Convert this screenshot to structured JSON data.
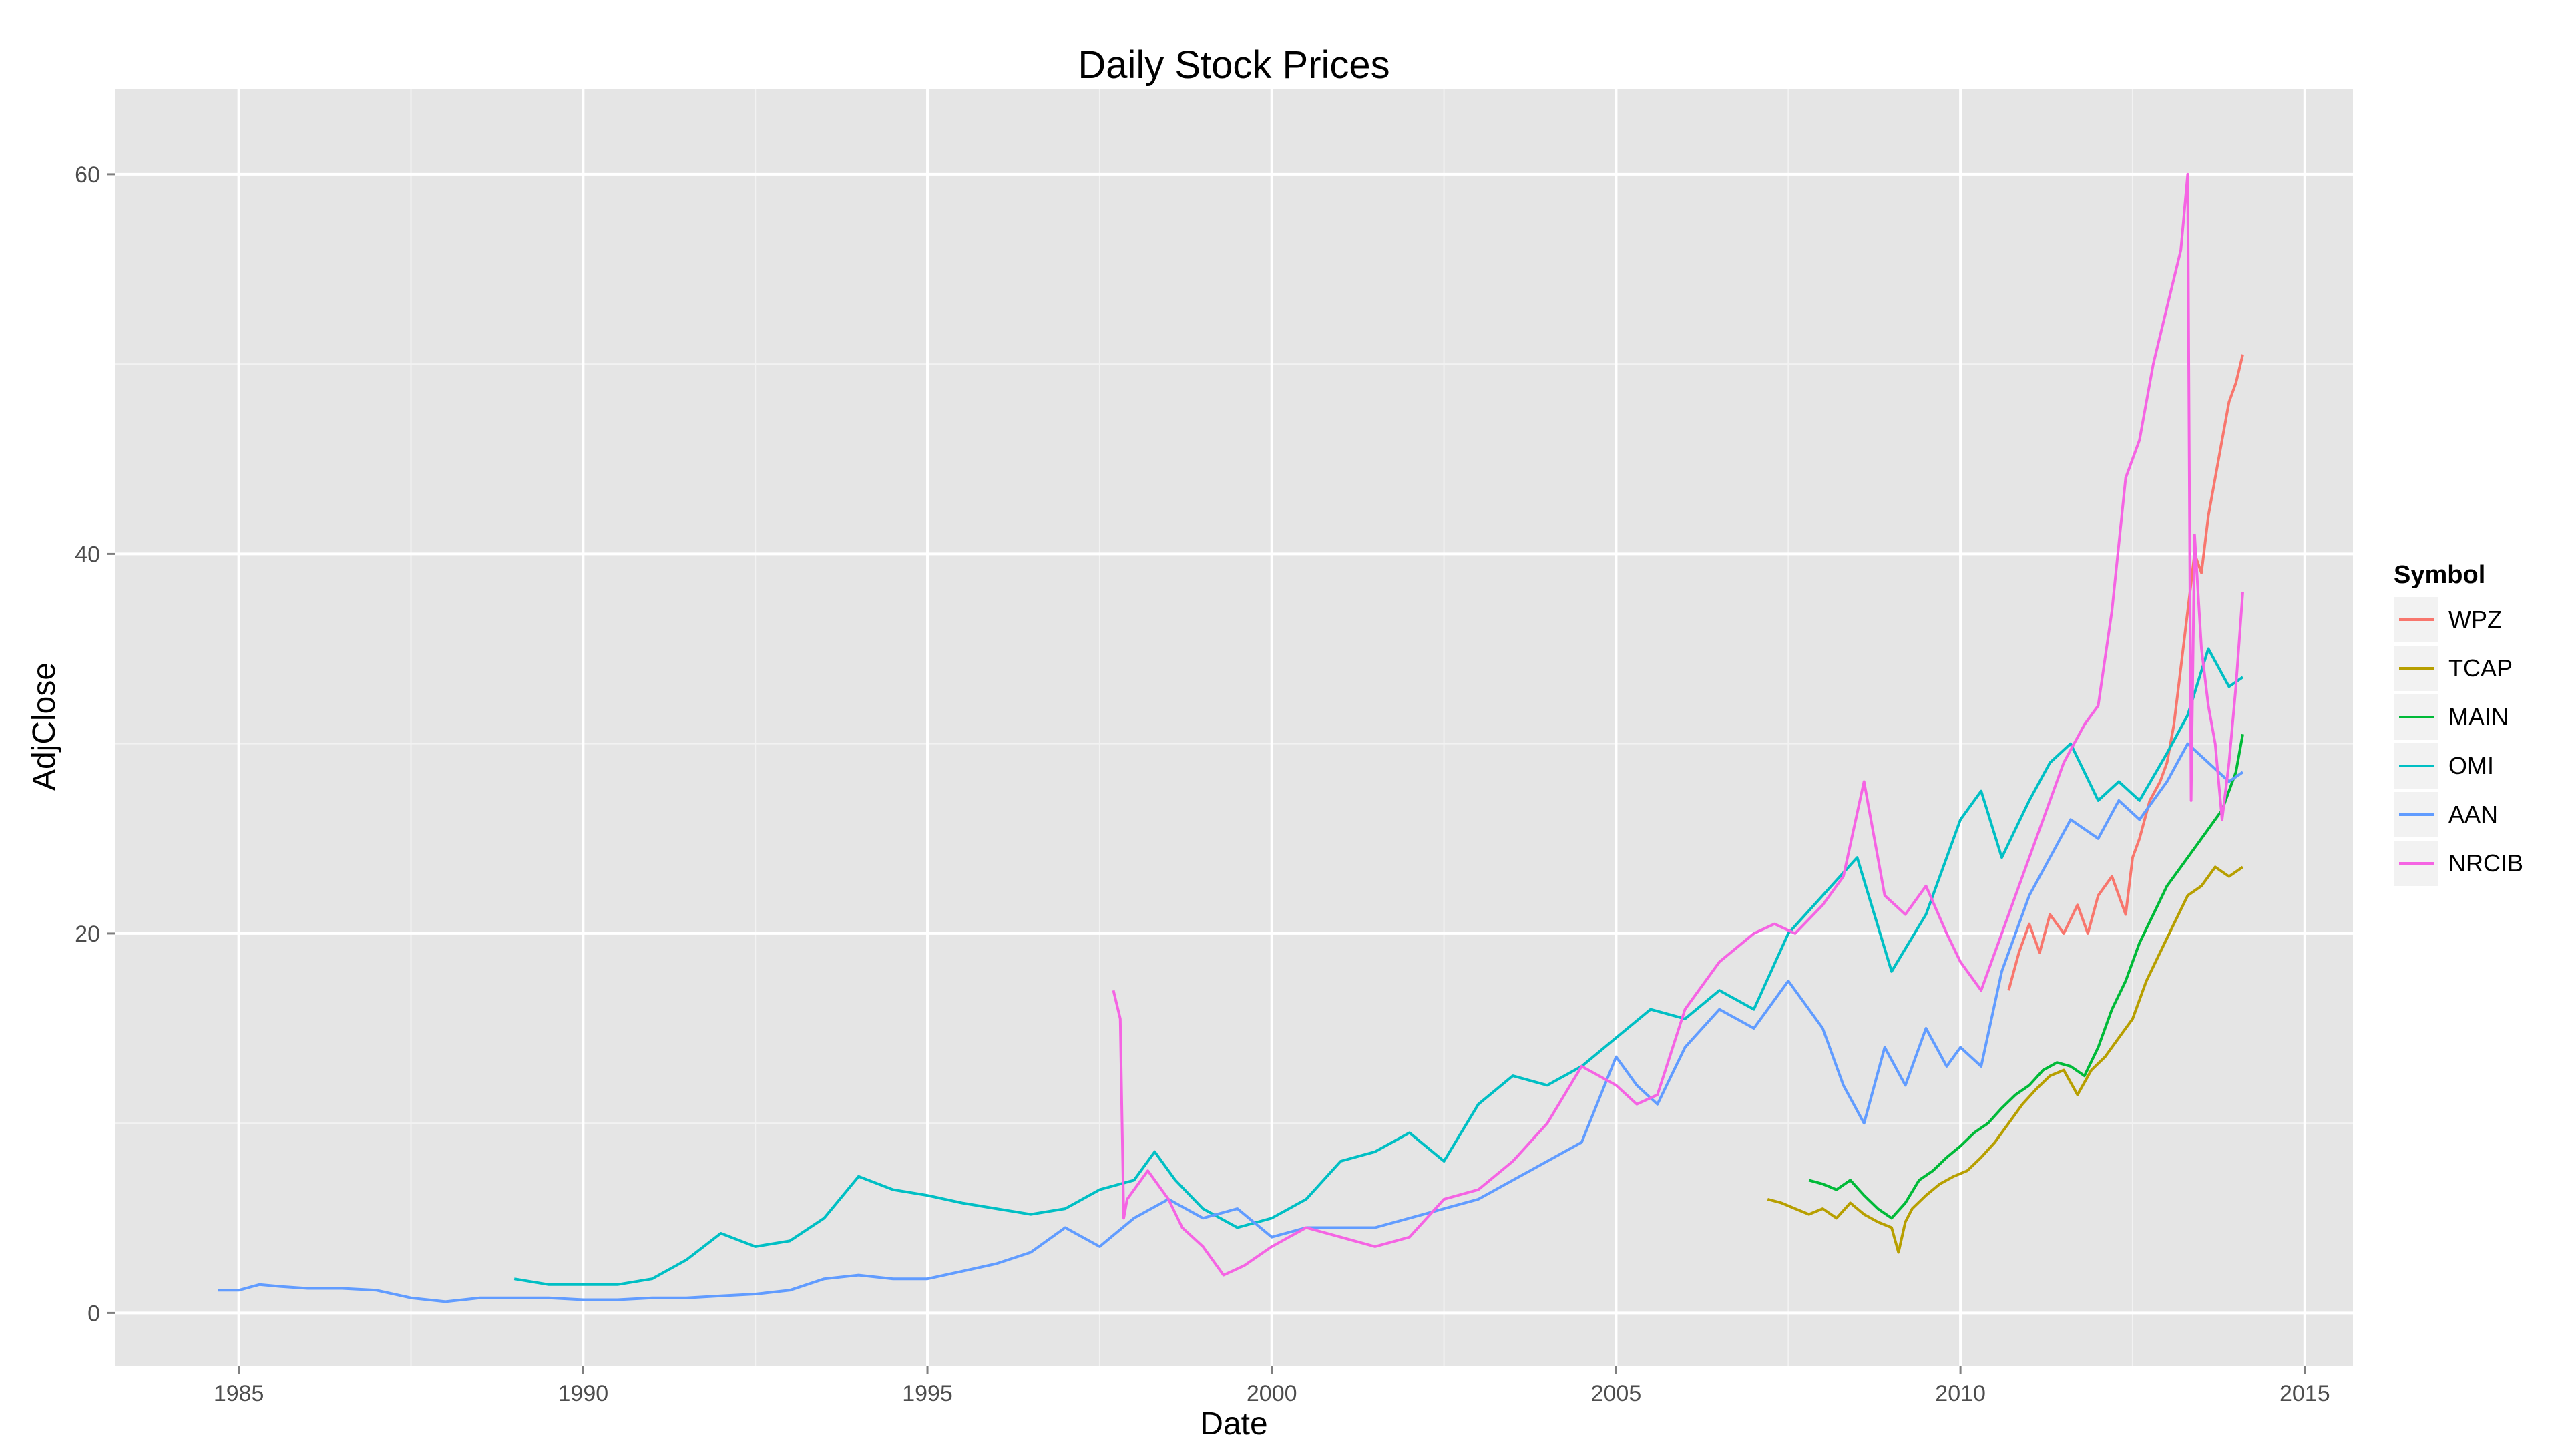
{
  "chart_data": {
    "type": "line",
    "title": "Daily Stock Prices",
    "xlabel": "Date",
    "ylabel": "AdjClose",
    "xlim": [
      1983.2,
      2015.7
    ],
    "ylim": [
      -2.8,
      64.5
    ],
    "x_ticks": [
      1985,
      1990,
      1995,
      2000,
      2005,
      2010,
      2015
    ],
    "x_tick_labels": [
      "1985",
      "1990",
      "1995",
      "2000",
      "2005",
      "2010",
      "2015"
    ],
    "y_ticks": [
      0,
      20,
      40,
      60
    ],
    "y_tick_labels": [
      "0",
      "20",
      "40",
      "60"
    ],
    "grid": true,
    "legend": {
      "title": "Symbol",
      "position": "right"
    },
    "series": [
      {
        "name": "WPZ",
        "color": "#F8766D",
        "x": [
          2010.7,
          2010.85,
          2011.0,
          2011.15,
          2011.3,
          2011.5,
          2011.7,
          2011.85,
          2012.0,
          2012.2,
          2012.4,
          2012.5,
          2012.6,
          2012.75,
          2012.9,
          2013.0,
          2013.1,
          2013.2,
          2013.3,
          2013.4,
          2013.5,
          2013.6,
          2013.7,
          2013.8,
          2013.9,
          2014.0,
          2014.1
        ],
        "y": [
          17,
          19,
          20.5,
          19,
          21,
          20,
          21.5,
          20,
          22,
          23,
          21,
          24,
          25,
          27,
          28,
          29,
          31,
          34,
          37,
          40,
          39,
          42,
          44,
          46,
          48,
          49,
          50.5
        ]
      },
      {
        "name": "TCAP",
        "color": "#B79F00",
        "x": [
          2007.2,
          2007.4,
          2007.6,
          2007.8,
          2008.0,
          2008.2,
          2008.4,
          2008.6,
          2008.8,
          2009.0,
          2009.1,
          2009.2,
          2009.3,
          2009.5,
          2009.7,
          2009.9,
          2010.1,
          2010.3,
          2010.5,
          2010.7,
          2010.9,
          2011.1,
          2011.3,
          2011.5,
          2011.7,
          2011.9,
          2012.1,
          2012.3,
          2012.5,
          2012.7,
          2012.9,
          2013.1,
          2013.3,
          2013.5,
          2013.7,
          2013.9,
          2014.1
        ],
        "y": [
          6,
          5.8,
          5.5,
          5.2,
          5.5,
          5.0,
          5.8,
          5.2,
          4.8,
          4.5,
          3.2,
          4.8,
          5.5,
          6.2,
          6.8,
          7.2,
          7.5,
          8.2,
          9.0,
          10.0,
          11.0,
          11.8,
          12.5,
          12.8,
          11.5,
          12.8,
          13.5,
          14.5,
          15.5,
          17.5,
          19.0,
          20.5,
          22.0,
          22.5,
          23.5,
          23.0,
          23.5
        ]
      },
      {
        "name": "MAIN",
        "color": "#00BA38",
        "x": [
          2007.8,
          2008.0,
          2008.2,
          2008.4,
          2008.6,
          2008.8,
          2009.0,
          2009.2,
          2009.4,
          2009.6,
          2009.8,
          2010.0,
          2010.2,
          2010.4,
          2010.6,
          2010.8,
          2011.0,
          2011.2,
          2011.4,
          2011.6,
          2011.8,
          2012.0,
          2012.2,
          2012.4,
          2012.6,
          2012.8,
          2013.0,
          2013.2,
          2013.4,
          2013.6,
          2013.8,
          2014.0,
          2014.1
        ],
        "y": [
          7,
          6.8,
          6.5,
          7.0,
          6.2,
          5.5,
          5.0,
          5.8,
          7.0,
          7.5,
          8.2,
          8.8,
          9.5,
          10.0,
          10.8,
          11.5,
          12.0,
          12.8,
          13.2,
          13.0,
          12.5,
          14.0,
          16.0,
          17.5,
          19.5,
          21.0,
          22.5,
          23.5,
          24.5,
          25.5,
          26.5,
          28.5,
          30.5
        ]
      },
      {
        "name": "OMI",
        "color": "#00BFC4",
        "x": [
          1989.0,
          1989.5,
          1990.0,
          1990.5,
          1991.0,
          1991.5,
          1992.0,
          1992.5,
          1993.0,
          1993.5,
          1994.0,
          1994.5,
          1995.0,
          1995.5,
          1996.0,
          1996.5,
          1997.0,
          1997.5,
          1998.0,
          1998.3,
          1998.6,
          1999.0,
          1999.5,
          2000.0,
          2000.5,
          2001.0,
          2001.5,
          2002.0,
          2002.5,
          2003.0,
          2003.5,
          2004.0,
          2004.5,
          2005.0,
          2005.5,
          2006.0,
          2006.5,
          2007.0,
          2007.5,
          2008.0,
          2008.5,
          2009.0,
          2009.5,
          2010.0,
          2010.3,
          2010.6,
          2011.0,
          2011.3,
          2011.6,
          2012.0,
          2012.3,
          2012.6,
          2013.0,
          2013.3,
          2013.6,
          2013.9,
          2014.1
        ],
        "y": [
          1.8,
          1.5,
          1.5,
          1.5,
          1.8,
          2.8,
          4.2,
          3.5,
          3.8,
          5.0,
          7.2,
          6.5,
          6.2,
          5.8,
          5.5,
          5.2,
          5.5,
          6.5,
          7.0,
          8.5,
          7.0,
          5.5,
          4.5,
          5.0,
          6.0,
          8.0,
          8.5,
          9.5,
          8.0,
          11.0,
          12.5,
          12.0,
          13.0,
          14.5,
          16.0,
          15.5,
          17.0,
          16.0,
          20.0,
          22.0,
          24.0,
          18.0,
          21.0,
          26.0,
          27.5,
          24.0,
          27.0,
          29.0,
          30.0,
          27.0,
          28.0,
          27.0,
          29.5,
          31.5,
          35.0,
          33.0,
          33.5
        ]
      },
      {
        "name": "AAN",
        "color": "#619CFF",
        "x": [
          1984.7,
          1985.0,
          1985.3,
          1985.6,
          1986.0,
          1986.5,
          1987.0,
          1987.5,
          1988.0,
          1988.5,
          1989.0,
          1989.5,
          1990.0,
          1990.5,
          1991.0,
          1991.5,
          1992.0,
          1992.5,
          1993.0,
          1993.5,
          1994.0,
          1994.5,
          1995.0,
          1995.5,
          1996.0,
          1996.5,
          1997.0,
          1997.5,
          1998.0,
          1998.5,
          1999.0,
          1999.5,
          2000.0,
          2000.5,
          2001.0,
          2001.5,
          2002.0,
          2002.5,
          2003.0,
          2003.5,
          2004.0,
          2004.5,
          2005.0,
          2005.3,
          2005.6,
          2006.0,
          2006.5,
          2007.0,
          2007.5,
          2008.0,
          2008.3,
          2008.6,
          2008.9,
          2009.2,
          2009.5,
          2009.8,
          2010.0,
          2010.3,
          2010.6,
          2011.0,
          2011.3,
          2011.6,
          2012.0,
          2012.3,
          2012.6,
          2013.0,
          2013.3,
          2013.6,
          2013.9,
          2014.1
        ],
        "y": [
          1.2,
          1.2,
          1.5,
          1.4,
          1.3,
          1.3,
          1.2,
          0.8,
          0.6,
          0.8,
          0.8,
          0.8,
          0.7,
          0.7,
          0.8,
          0.8,
          0.9,
          1.0,
          1.2,
          1.8,
          2.0,
          1.8,
          1.8,
          2.2,
          2.6,
          3.2,
          4.5,
          3.5,
          5.0,
          6.0,
          5.0,
          5.5,
          4.0,
          4.5,
          4.5,
          4.5,
          5.0,
          5.5,
          6.0,
          7.0,
          8.0,
          9.0,
          13.5,
          12.0,
          11.0,
          14.0,
          16.0,
          15.0,
          17.5,
          15.0,
          12.0,
          10.0,
          14.0,
          12.0,
          15.0,
          13.0,
          14.0,
          13.0,
          18.0,
          22.0,
          24.0,
          26.0,
          25.0,
          27.0,
          26.0,
          28.0,
          30.0,
          29.0,
          28.0,
          28.5
        ]
      },
      {
        "name": "NRCIB",
        "color": "#F564E3",
        "x": [
          1997.7,
          1997.8,
          1997.85,
          1997.9,
          1998.2,
          1998.5,
          1998.7,
          1999.0,
          1999.3,
          1999.6,
          2000.0,
          2000.5,
          2001.0,
          2001.5,
          2002.0,
          2002.5,
          2003.0,
          2003.5,
          2004.0,
          2004.5,
          2005.0,
          2005.3,
          2005.6,
          2006.0,
          2006.5,
          2007.0,
          2007.3,
          2007.6,
          2008.0,
          2008.3,
          2008.6,
          2008.9,
          2009.2,
          2009.5,
          2009.8,
          2010.0,
          2010.3,
          2010.6,
          2010.9,
          2011.2,
          2011.5,
          2011.8,
          2012.0,
          2012.2,
          2012.4,
          2012.6,
          2012.8,
          2013.0,
          2013.2,
          2013.3,
          2013.35,
          2013.4,
          2013.5,
          2013.6,
          2013.7,
          2013.8,
          2013.9,
          2014.0,
          2014.1
        ],
        "y": [
          17.0,
          15.5,
          5.0,
          6.0,
          7.5,
          6.0,
          4.5,
          3.5,
          2.0,
          2.5,
          3.5,
          4.5,
          4.0,
          3.5,
          4.0,
          6.0,
          6.5,
          8.0,
          10.0,
          13.0,
          12.0,
          11.0,
          11.5,
          16.0,
          18.5,
          20.0,
          20.5,
          20.0,
          21.5,
          23.0,
          28.0,
          22.0,
          21.0,
          22.5,
          20.0,
          18.5,
          17.0,
          20.0,
          23.0,
          26.0,
          29.0,
          31.0,
          32.0,
          37.0,
          44.0,
          46.0,
          50.0,
          53.0,
          56.0,
          60.0,
          27.0,
          41.0,
          35.0,
          32.0,
          30.0,
          26.0,
          29.0,
          33.0,
          38.0
        ]
      }
    ]
  }
}
